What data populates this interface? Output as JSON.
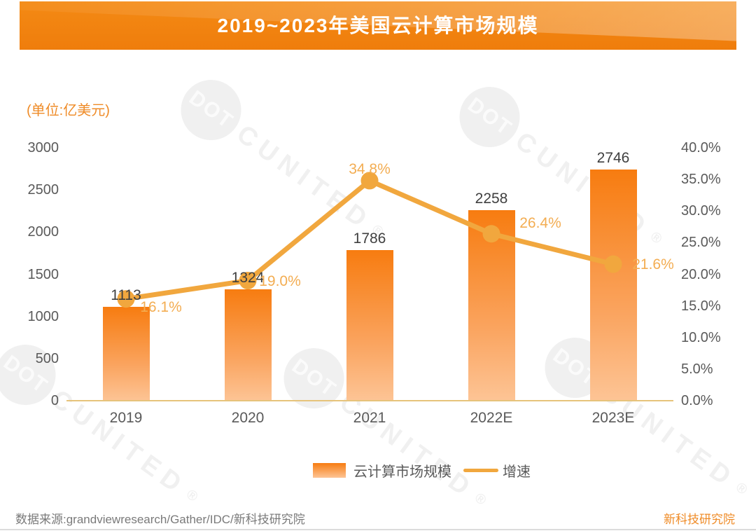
{
  "title": "2019~2023年美国云计算市场规模",
  "unit_label": "(单位:亿美元)",
  "watermark": {
    "circle_text": "DOT",
    "text": "CUNITED",
    "reg": "®"
  },
  "chart_data": {
    "type": "bar",
    "title": "2019~2023年美国云计算市场规模",
    "unit": "亿美元",
    "categories": [
      "2019",
      "2020",
      "2021",
      "2022E",
      "2023E"
    ],
    "series": [
      {
        "name": "云计算市场规模",
        "type": "bar",
        "values": [
          1113,
          1324,
          1786,
          2258,
          2746
        ]
      },
      {
        "name": "增速",
        "type": "line",
        "unit": "%",
        "values": [
          16.1,
          19.0,
          34.8,
          26.4,
          21.6
        ]
      }
    ],
    "y_left": {
      "ticks": [
        3000,
        2500,
        2000,
        1500,
        1000,
        500,
        0
      ],
      "range": [
        0,
        3000
      ]
    },
    "y_right": {
      "ticks": [
        40,
        35,
        30,
        25,
        20,
        15,
        10,
        5,
        0
      ],
      "range": [
        0,
        40
      ],
      "format": "percent_1dp"
    },
    "grid": false,
    "legend_position": "bottom"
  },
  "legend": {
    "bar_label": "云计算市场规模",
    "line_label": "增速"
  },
  "footer": {
    "source": "数据来源:grandviewresearch/Gather/IDC/新科技研究院",
    "brand": "新科技研究院"
  },
  "colors": {
    "brand_orange": "#ef8b27",
    "banner_base": "#f08110",
    "bar_top": "#f77c10",
    "bar_bottom": "#fdc495",
    "line": "#f1a73e",
    "percent_label": "#f3ad52",
    "value_label": "#3f3f3f",
    "axis_label": "#5a5a5a",
    "baseline": "#e6c37b",
    "footer_gray": "#7a7a7a",
    "watermark": "#f0f0f0"
  }
}
